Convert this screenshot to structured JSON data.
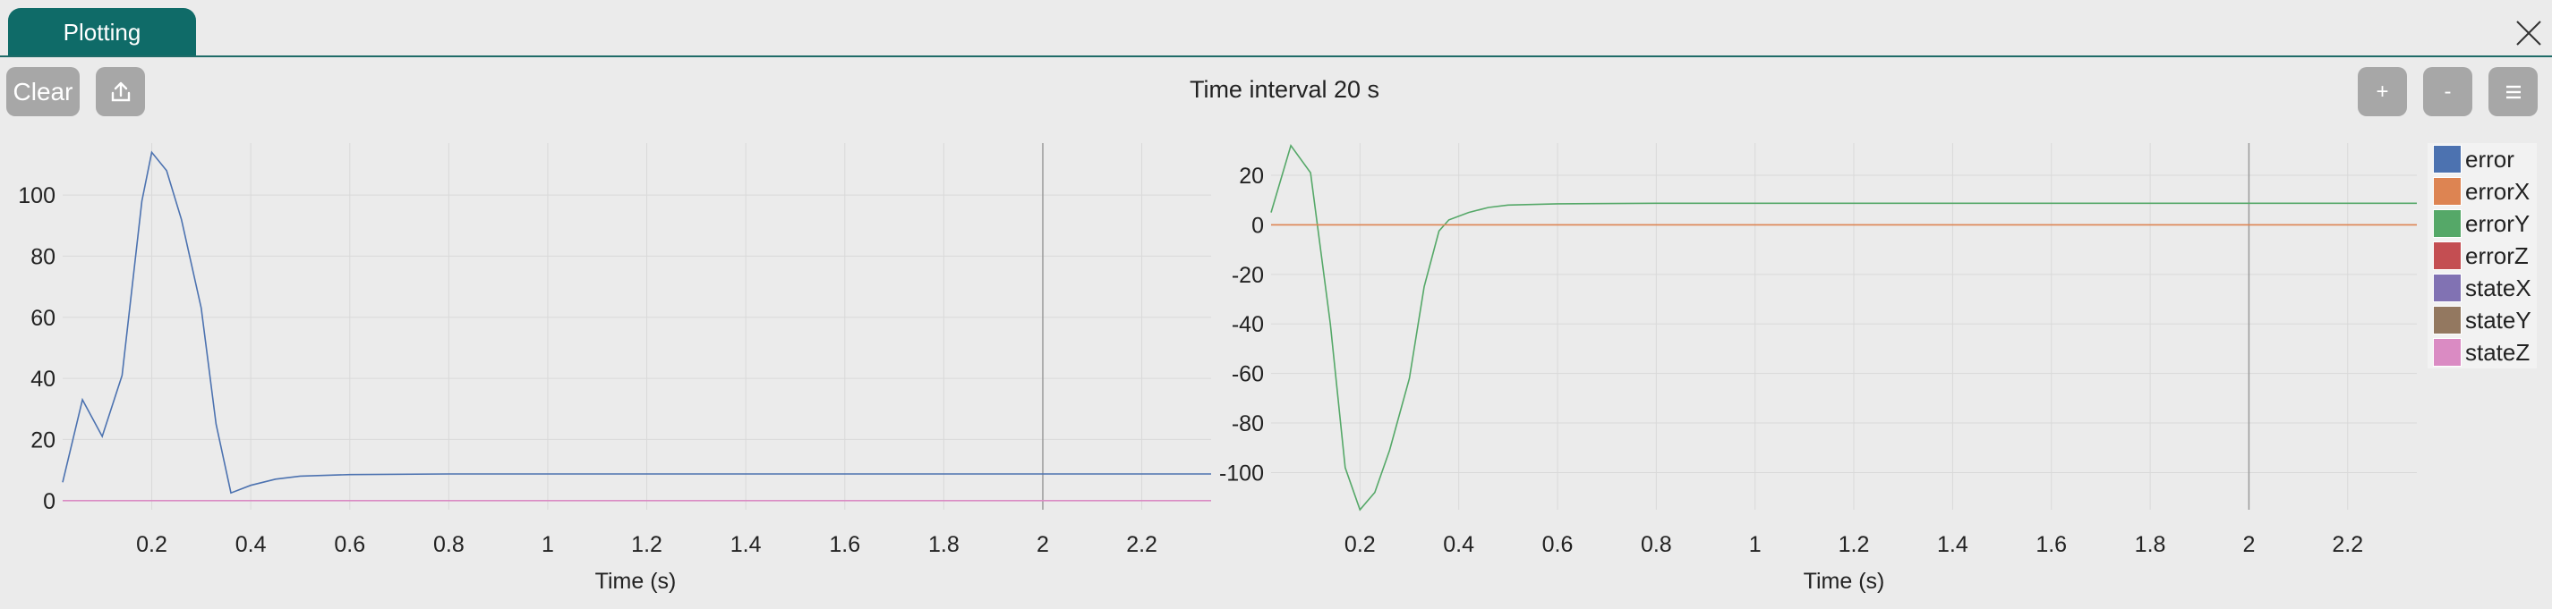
{
  "tab": {
    "label": "Plotting"
  },
  "toolbar": {
    "clear_label": "Clear",
    "plus_label": "+",
    "minus_label": "-",
    "interval_label": "Time interval 20 s"
  },
  "icons": {
    "upload": "upload-icon",
    "menu": "hamburger-menu-icon",
    "close": "close-icon"
  },
  "legend": [
    {
      "name": "error",
      "color": "#4c72b0"
    },
    {
      "name": "errorX",
      "color": "#dd8452"
    },
    {
      "name": "errorY",
      "color": "#55a868"
    },
    {
      "name": "errorZ",
      "color": "#c44e52"
    },
    {
      "name": "stateX",
      "color": "#8172b3"
    },
    {
      "name": "stateY",
      "color": "#937860"
    },
    {
      "name": "stateZ",
      "color": "#da8bc3"
    }
  ],
  "chart_data": [
    {
      "type": "line",
      "xlabel": "Time (s)",
      "xlim": [
        0.02,
        2.34
      ],
      "ylim": [
        -3,
        117
      ],
      "xticks": [
        0.2,
        0.4,
        0.6,
        0.8,
        1,
        1.2,
        1.4,
        1.6,
        1.8,
        2,
        2.2
      ],
      "yticks": [
        0,
        20,
        40,
        60,
        80,
        100
      ],
      "grid": true,
      "marker_line_x": 2,
      "series": [
        {
          "name": "error",
          "color": "#4c72b0",
          "x": [
            0.02,
            0.06,
            0.1,
            0.14,
            0.18,
            0.2,
            0.23,
            0.26,
            0.3,
            0.33,
            0.36,
            0.4,
            0.45,
            0.5,
            0.6,
            0.8,
            1.0,
            2.34
          ],
          "y": [
            6,
            33,
            21,
            41,
            98,
            114,
            108,
            92,
            63,
            25,
            2.5,
            5,
            7,
            8,
            8.5,
            8.7,
            8.7,
            8.7
          ]
        },
        {
          "name": "stateZ",
          "color": "#da8bc3",
          "x": [
            0.02,
            2.34
          ],
          "y": [
            0,
            0
          ]
        }
      ]
    },
    {
      "type": "line",
      "xlabel": "Time (s)",
      "xlim": [
        0.02,
        2.34
      ],
      "ylim": [
        -115,
        33
      ],
      "xticks": [
        0.2,
        0.4,
        0.6,
        0.8,
        1,
        1.2,
        1.4,
        1.6,
        1.8,
        2,
        2.2
      ],
      "yticks": [
        20,
        0,
        -20,
        -40,
        -60,
        -80,
        -100
      ],
      "grid": true,
      "marker_line_x": 2,
      "series": [
        {
          "name": "errorY",
          "color": "#55a868",
          "x": [
            0.02,
            0.06,
            0.1,
            0.14,
            0.17,
            0.2,
            0.23,
            0.26,
            0.3,
            0.33,
            0.36,
            0.38,
            0.42,
            0.46,
            0.5,
            0.6,
            0.8,
            2.34
          ],
          "y": [
            5,
            32,
            21,
            -40,
            -98,
            -115,
            -108,
            -91,
            -62,
            -25,
            -2.5,
            2,
            5,
            7,
            8,
            8.5,
            8.7,
            8.7
          ]
        },
        {
          "name": "errorX",
          "color": "#dd8452",
          "x": [
            0.02,
            2.34
          ],
          "y": [
            0,
            0
          ]
        }
      ]
    }
  ]
}
